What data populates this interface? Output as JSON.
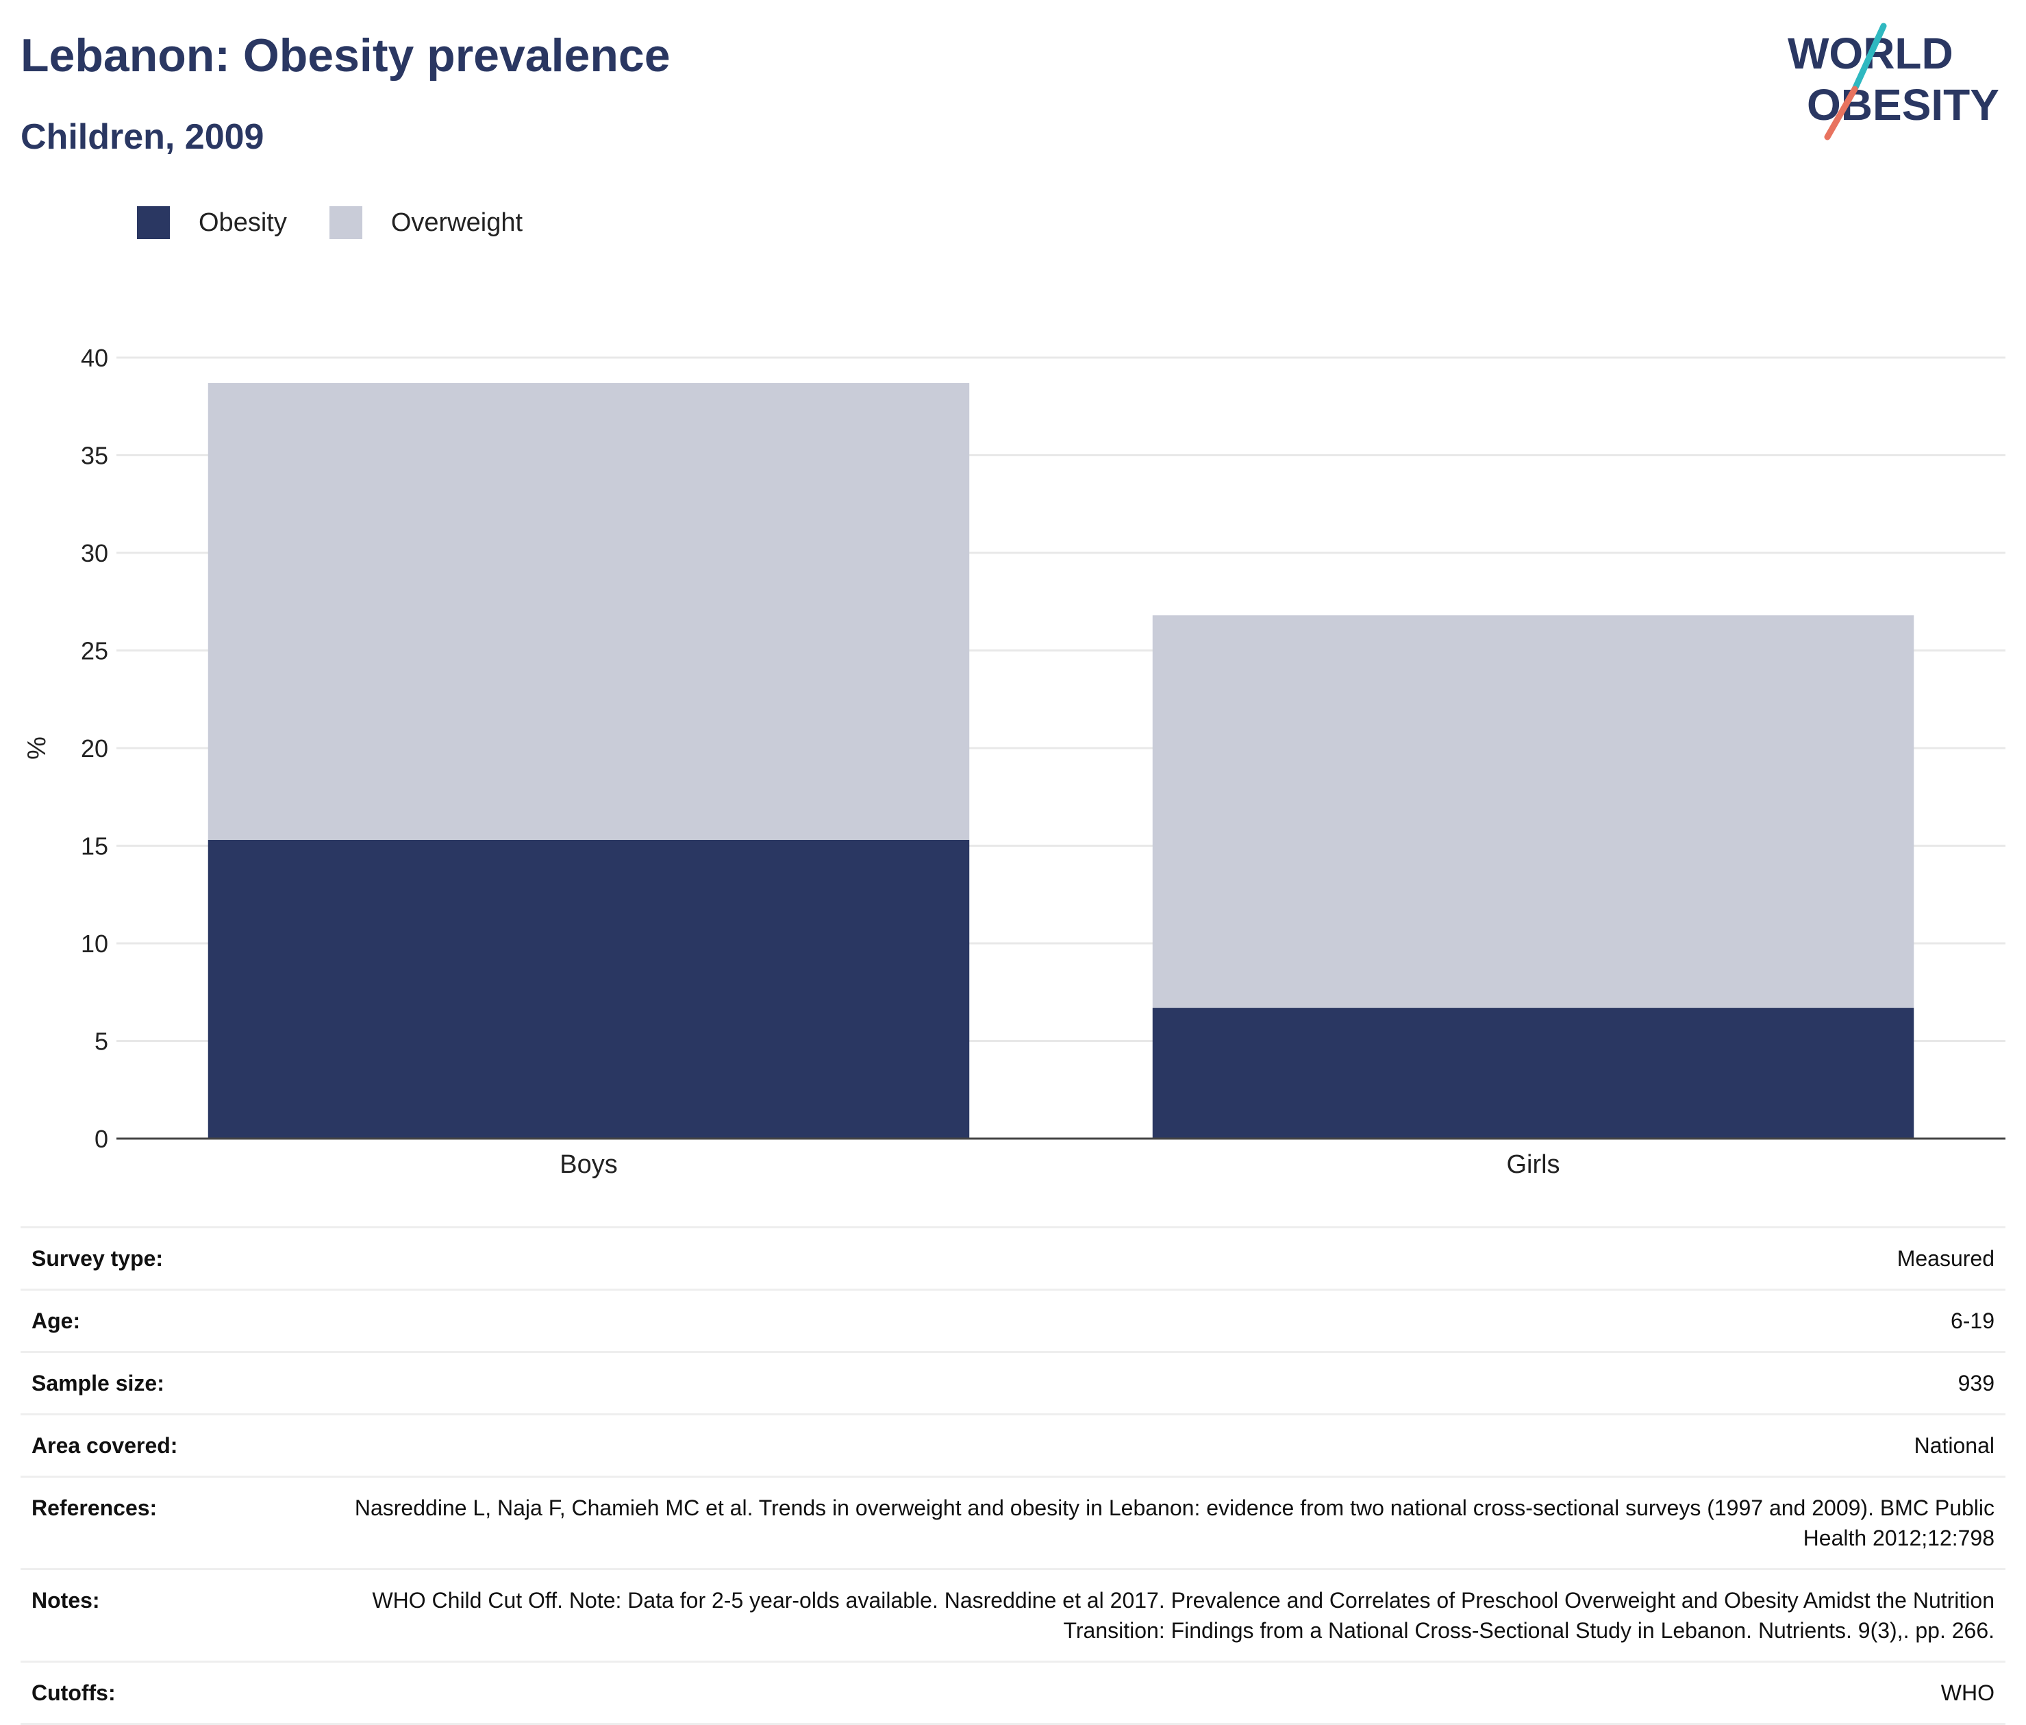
{
  "title": "Lebanon: Obesity prevalence",
  "subtitle": "Children, 2009",
  "logo": {
    "line1": "WORLD",
    "line2": "OBESITY"
  },
  "colors": {
    "obesity": "#2a3762",
    "overweight": "#c9ccd8",
    "title": "#2a3762",
    "logo_teal": "#2fb8c0",
    "logo_coral": "#e8735f"
  },
  "legend": [
    {
      "label": "Obesity",
      "color": "#2a3762"
    },
    {
      "label": "Overweight",
      "color": "#c9ccd8"
    }
  ],
  "chart_data": {
    "type": "bar",
    "stacked": true,
    "categories": [
      "Boys",
      "Girls"
    ],
    "series": [
      {
        "name": "Obesity",
        "values": [
          15.3,
          6.7
        ]
      },
      {
        "name": "Overweight",
        "values": [
          23.4,
          20.1
        ]
      }
    ],
    "ylabel": "%",
    "ylim": [
      0,
      40
    ],
    "yticks": [
      0,
      5,
      10,
      15,
      20,
      25,
      30,
      35,
      40
    ],
    "grid": true,
    "legend_position": "top-left"
  },
  "info": [
    {
      "label": "Survey type:",
      "value": "Measured"
    },
    {
      "label": "Age:",
      "value": "6-19"
    },
    {
      "label": "Sample size:",
      "value": "939"
    },
    {
      "label": "Area covered:",
      "value": "National"
    },
    {
      "label": "References:",
      "value": "Nasreddine L, Naja F, Chamieh MC et al. Trends in overweight and obesity in Lebanon: evidence from two national cross-sectional surveys (1997 and 2009). BMC Public Health 2012;12:798"
    },
    {
      "label": "Notes:",
      "value": "WHO Child Cut Off. Note: Data for 2-5 year-olds available. Nasreddine et al 2017. Prevalence and Correlates of Preschool Overweight and Obesity Amidst the Nutrition Transition: Findings from a National Cross-Sectional Study in Lebanon. Nutrients. 9(3),. pp. 266."
    },
    {
      "label": "Cutoffs:",
      "value": "WHO"
    }
  ]
}
